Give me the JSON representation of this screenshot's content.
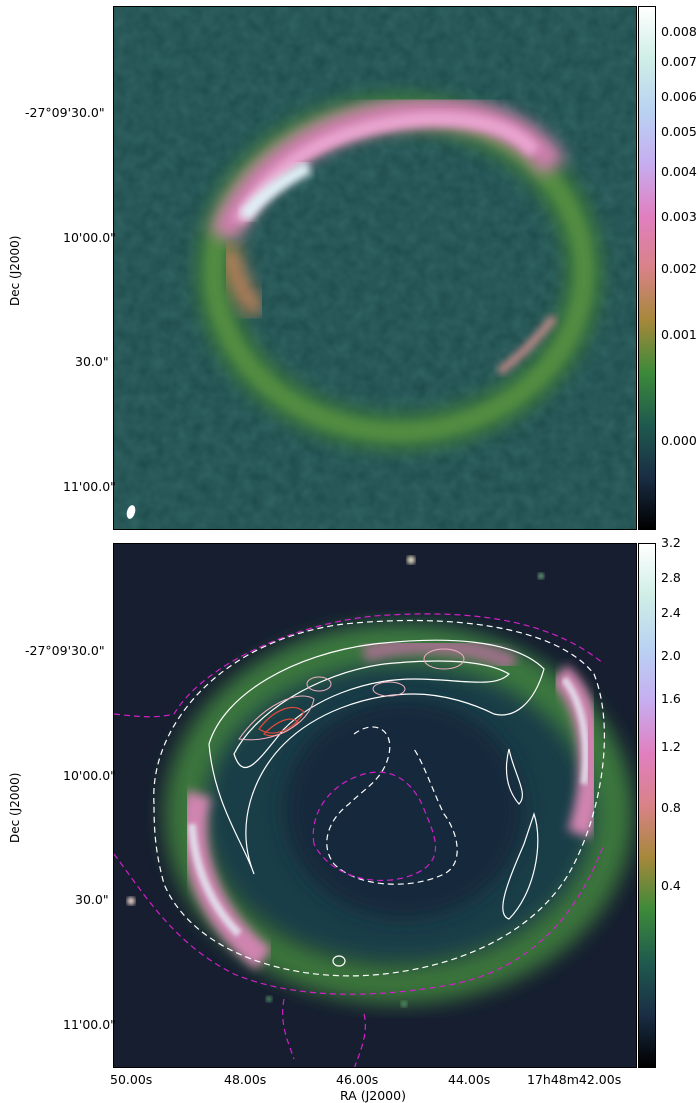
{
  "top_panel": {
    "y_tick_labels": [
      "-27°09'30.0\"",
      "10'00.0\"",
      "30.0\"",
      "11'00.0\""
    ],
    "y_axis_label": "Dec (J2000)",
    "colorbar_ticks": [
      "0.008",
      "0.007",
      "0.006",
      "0.005",
      "0.004",
      "0.003",
      "0.002",
      "0.001",
      "0.000"
    ],
    "colorbar_colors": [
      "#ffffff",
      "#cfeee6",
      "#b9d2f2",
      "#c6aef0",
      "#e07fc0",
      "#d98288",
      "#a6883a",
      "#3c8a3a",
      "#1f5a4e",
      "#1a2e45",
      "#000000"
    ]
  },
  "bottom_panel": {
    "y_tick_labels": [
      "-27°09'30.0\"",
      "10'00.0\"",
      "30.0\"",
      "11'00.0\""
    ],
    "y_axis_label": "Dec (J2000)",
    "x_tick_labels": [
      "50.00s",
      "48.00s",
      "46.00s",
      "44.00s",
      "17h48m42.00s"
    ],
    "x_axis_label": "RA (J2000)",
    "colorbar_ticks": [
      "3.2",
      "2.8",
      "2.4",
      "2.0",
      "1.6",
      "1.2",
      "0.8",
      "0.4"
    ],
    "colorbar_colors": [
      "#ffffff",
      "#cfeee6",
      "#b9d2f2",
      "#c6aef0",
      "#e07fc0",
      "#d98288",
      "#a6883a",
      "#3c8a3a",
      "#1f5a4e",
      "#1a2e45",
      "#000000"
    ]
  },
  "colors": {
    "background_field": "#1d4b4a",
    "bottom_field": "#161e30",
    "ring_green": "#4f8a3e",
    "ring_pink": "#e59ac6",
    "ring_white": "#e8f2f6",
    "contour_white": "#ffffff",
    "contour_magenta": "#d020c8",
    "contour_red": "#e04a3a"
  }
}
